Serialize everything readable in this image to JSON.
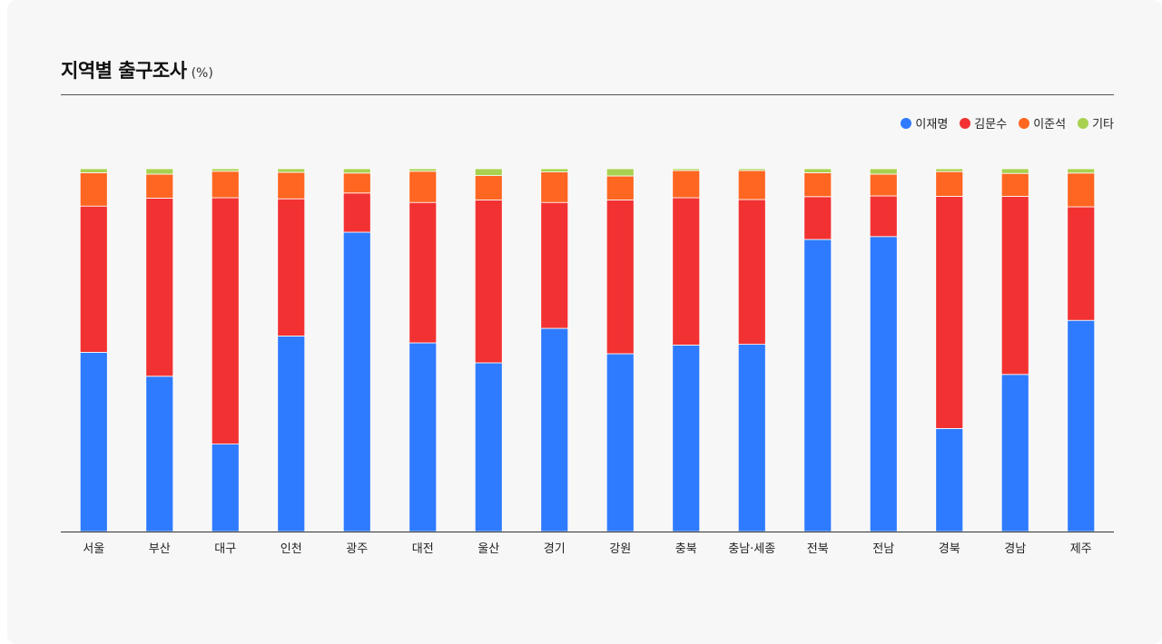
{
  "title": "지역별 출구조사",
  "unit": "(%)",
  "colors": {
    "background": "#f7f7f7",
    "rule": "#555555"
  },
  "chart_data": {
    "type": "bar",
    "stacked": true,
    "categories": [
      "서울",
      "부산",
      "대구",
      "인천",
      "광주",
      "대전",
      "울산",
      "경기",
      "강원",
      "충북",
      "충남·세종",
      "전북",
      "전남",
      "경북",
      "경남",
      "제주"
    ],
    "series": [
      {
        "name": "이재명",
        "color": "#2f7bff",
        "values": [
          49.4,
          42.8,
          24.1,
          53.9,
          82.5,
          52.0,
          46.5,
          56.0,
          49.0,
          51.4,
          51.6,
          80.5,
          81.3,
          28.4,
          43.3,
          58.2
        ]
      },
      {
        "name": "김문수",
        "color": "#f23232",
        "values": [
          40.3,
          49.1,
          67.9,
          37.8,
          10.8,
          38.7,
          44.9,
          34.7,
          42.4,
          40.6,
          39.9,
          11.8,
          11.2,
          64.0,
          49.1,
          31.3
        ]
      },
      {
        "name": "이준석",
        "color": "#ff6621",
        "values": [
          9.2,
          6.6,
          7.3,
          7.3,
          5.5,
          8.6,
          6.7,
          8.4,
          6.6,
          7.5,
          8.0,
          6.6,
          6.0,
          6.8,
          6.3,
          9.3
        ]
      },
      {
        "name": "기타",
        "color": "#a8d150",
        "values": [
          1.1,
          1.5,
          0.7,
          1.0,
          1.2,
          0.7,
          1.9,
          0.9,
          2.0,
          0.5,
          0.5,
          1.1,
          1.5,
          0.8,
          1.3,
          1.2
        ]
      }
    ],
    "ylim": [
      0,
      100
    ],
    "grid": false,
    "legend": "top-right"
  }
}
